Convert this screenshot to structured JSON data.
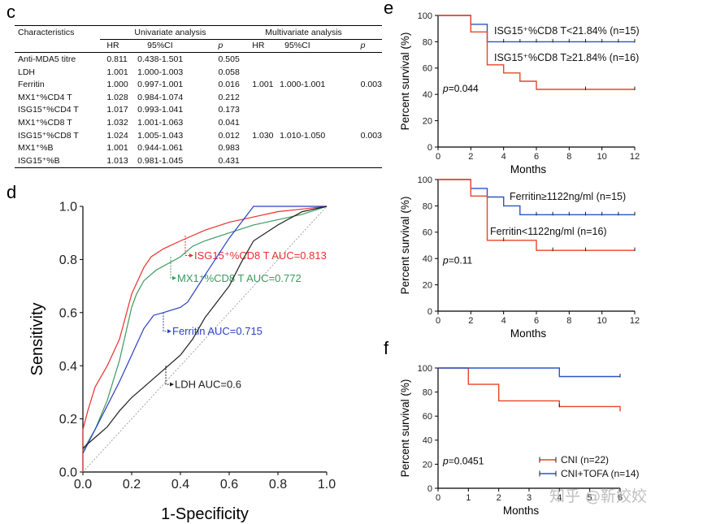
{
  "panels": {
    "c": "c",
    "d": "d",
    "e": "e",
    "f": "f"
  },
  "watermark": "知乎 @靳姣姣",
  "table": {
    "header_group": {
      "characteristics": "Characteristics",
      "univariate": "Univariate analysis",
      "multivariate": "Multivariate analysis"
    },
    "sub_headers": [
      "HR",
      "95%CI",
      "p",
      "HR",
      "95%CI",
      "p"
    ],
    "rows": [
      {
        "name": "Anti-MDA5 titre",
        "uhr": "0.811",
        "uci": "0.438-1.501",
        "up": "0.505",
        "mhr": "",
        "mci": "",
        "mp": ""
      },
      {
        "name": "LDH",
        "uhr": "1.001",
        "uci": "1.000-1.003",
        "up": "0.058",
        "mhr": "",
        "mci": "",
        "mp": ""
      },
      {
        "name": "Ferritin",
        "uhr": "1.000",
        "uci": "0.997-1.001",
        "up": "0.016",
        "mhr": "1.001",
        "mci": "1.000-1.001",
        "mp": "0.003"
      },
      {
        "name": "MX1⁺%CD4 T",
        "uhr": "1.028",
        "uci": "0.984-1.074",
        "up": "0.212",
        "mhr": "",
        "mci": "",
        "mp": ""
      },
      {
        "name": "ISG15⁺%CD4 T",
        "uhr": "1.017",
        "uci": "0.993-1.041",
        "up": "0.173",
        "mhr": "",
        "mci": "",
        "mp": ""
      },
      {
        "name": "MX1⁺%CD8 T",
        "uhr": "1.032",
        "uci": "1.001-1.063",
        "up": "0.041",
        "mhr": "",
        "mci": "",
        "mp": ""
      },
      {
        "name": "ISG15⁺%CD8 T",
        "uhr": "1.024",
        "uci": "1.005-1.043",
        "up": "0.012",
        "mhr": "1.030",
        "mci": "1.010-1.050",
        "mp": "0.003"
      },
      {
        "name": "MX1⁺%B",
        "uhr": "1.001",
        "uci": "0.944-1.061",
        "up": "0.983",
        "mhr": "",
        "mci": "",
        "mp": ""
      },
      {
        "name": "ISG15⁺%B",
        "uhr": "1.013",
        "uci": "0.981-1.045",
        "up": "0.431",
        "mhr": "",
        "mci": "",
        "mp": ""
      }
    ]
  },
  "chart_data": [
    {
      "panel": "d",
      "type": "line",
      "xlabel": "1-Specificity",
      "ylabel": "Sensitivity",
      "xlim": [
        0,
        1
      ],
      "ylim": [
        0,
        1
      ],
      "xticks": [
        "0.0",
        "0.2",
        "0.4",
        "0.6",
        "0.8",
        "1.0"
      ],
      "yticks": [
        "0.0",
        "0.2",
        "0.4",
        "0.6",
        "0.8",
        "1.0"
      ],
      "reference_line": true,
      "series": [
        {
          "name": "ISG15⁺%CD8 T AUC=0.813",
          "color": "#e8302e",
          "points": [
            [
              0,
              0
            ],
            [
              0,
              0.16
            ],
            [
              0.02,
              0.23
            ],
            [
              0.05,
              0.32
            ],
            [
              0.1,
              0.4
            ],
            [
              0.15,
              0.5
            ],
            [
              0.2,
              0.67
            ],
            [
              0.22,
              0.71
            ],
            [
              0.25,
              0.77
            ],
            [
              0.28,
              0.81
            ],
            [
              0.33,
              0.84
            ],
            [
              0.4,
              0.87
            ],
            [
              0.5,
              0.91
            ],
            [
              0.6,
              0.94
            ],
            [
              0.7,
              0.96
            ],
            [
              0.8,
              0.98
            ],
            [
              0.9,
              0.99
            ],
            [
              1,
              1
            ]
          ],
          "label_anchor": [
            0.42,
            0.89
          ],
          "label_pos": [
            0.45,
            0.815
          ]
        },
        {
          "name": "MX1⁺%CD8 T AUC=0.772",
          "color": "#3a9a5f",
          "points": [
            [
              0,
              0.08
            ],
            [
              0.05,
              0.16
            ],
            [
              0.1,
              0.27
            ],
            [
              0.15,
              0.42
            ],
            [
              0.2,
              0.62
            ],
            [
              0.22,
              0.67
            ],
            [
              0.25,
              0.72
            ],
            [
              0.3,
              0.76
            ],
            [
              0.4,
              0.81
            ],
            [
              0.45,
              0.85
            ],
            [
              0.5,
              0.87
            ],
            [
              0.6,
              0.9
            ],
            [
              0.7,
              0.93
            ],
            [
              0.8,
              0.95
            ],
            [
              0.9,
              0.97
            ],
            [
              1,
              1
            ]
          ],
          "label_anchor": [
            0.36,
            0.81
          ],
          "label_pos": [
            0.38,
            0.73
          ]
        },
        {
          "name": "Ferritin AUC=0.715",
          "color": "#2b3fc4",
          "points": [
            [
              0,
              0.07
            ],
            [
              0.05,
              0.16
            ],
            [
              0.1,
              0.25
            ],
            [
              0.15,
              0.34
            ],
            [
              0.2,
              0.44
            ],
            [
              0.25,
              0.54
            ],
            [
              0.29,
              0.59
            ],
            [
              0.33,
              0.6
            ],
            [
              0.4,
              0.62
            ],
            [
              0.43,
              0.64
            ],
            [
              0.5,
              0.74
            ],
            [
              0.55,
              0.81
            ],
            [
              0.6,
              0.88
            ],
            [
              0.65,
              0.94
            ],
            [
              0.7,
              1.0
            ],
            [
              1,
              1
            ]
          ],
          "label_anchor": [
            0.33,
            0.6
          ],
          "label_pos": [
            0.36,
            0.53
          ]
        },
        {
          "name": "LDH AUC=0.6",
          "color": "#1e1e1e",
          "points": [
            [
              0,
              0.09
            ],
            [
              0.05,
              0.13
            ],
            [
              0.1,
              0.17
            ],
            [
              0.15,
              0.23
            ],
            [
              0.2,
              0.28
            ],
            [
              0.25,
              0.32
            ],
            [
              0.3,
              0.36
            ],
            [
              0.35,
              0.4
            ],
            [
              0.4,
              0.44
            ],
            [
              0.45,
              0.5
            ],
            [
              0.5,
              0.58
            ],
            [
              0.55,
              0.64
            ],
            [
              0.6,
              0.7
            ],
            [
              0.65,
              0.79
            ],
            [
              0.7,
              0.87
            ],
            [
              0.8,
              0.93
            ],
            [
              0.9,
              0.98
            ],
            [
              1,
              1
            ]
          ],
          "label_anchor": [
            0.34,
            0.4
          ],
          "label_pos": [
            0.37,
            0.33
          ]
        }
      ]
    },
    {
      "panel": "e-top",
      "type": "line",
      "xlabel": "Months",
      "ylabel": "Percent survival (%)",
      "xlim": [
        0,
        12
      ],
      "ylim": [
        0,
        100
      ],
      "xticks": [
        0,
        2,
        4,
        6,
        8,
        10,
        12
      ],
      "yticks": [
        0,
        20,
        40,
        60,
        80,
        100
      ],
      "pvalue": "=0.044",
      "series": [
        {
          "name": "ISG15⁺%CD8 T<21.84% (n=15)",
          "color": "#2955c5",
          "steps": [
            [
              0,
              100
            ],
            [
              2,
              93.3
            ],
            [
              3,
              80
            ],
            [
              12,
              80
            ]
          ],
          "censors": [
            [
              4,
              80
            ],
            [
              5,
              80
            ],
            [
              6,
              80
            ],
            [
              7,
              80
            ],
            [
              8,
              80
            ],
            [
              9,
              80
            ],
            [
              10,
              80
            ],
            [
              11,
              80
            ],
            [
              12,
              80
            ]
          ]
        },
        {
          "name": "ISG15⁺%CD8 T≥21.84% (n=16)",
          "color": "#e8452a",
          "steps": [
            [
              0,
              100
            ],
            [
              2,
              87.5
            ],
            [
              3,
              62.5
            ],
            [
              4,
              56.3
            ],
            [
              5,
              50
            ],
            [
              6,
              43.8
            ],
            [
              12,
              43.8
            ]
          ],
          "censors": [
            [
              9,
              43.8
            ],
            [
              12,
              43.8
            ]
          ]
        }
      ]
    },
    {
      "panel": "e-bottom",
      "type": "line",
      "xlabel": "Months",
      "ylabel": "Percent survival (%)",
      "xlim": [
        0,
        12
      ],
      "ylim": [
        0,
        100
      ],
      "xticks": [
        0,
        2,
        4,
        6,
        8,
        10,
        12
      ],
      "yticks": [
        0,
        20,
        40,
        60,
        80,
        100
      ],
      "pvalue": "=0.11",
      "series": [
        {
          "name": "Ferritin≥1122ng/ml (n=15)",
          "color": "#2955c5",
          "steps": [
            [
              0,
              100
            ],
            [
              2,
              93.3
            ],
            [
              3,
              86.7
            ],
            [
              4,
              80
            ],
            [
              5,
              73.3
            ],
            [
              12,
              73.3
            ]
          ],
          "censors": [
            [
              6,
              73.3
            ],
            [
              7,
              73.3
            ],
            [
              8,
              73.3
            ],
            [
              9,
              73.3
            ],
            [
              10,
              73.3
            ],
            [
              11,
              73.3
            ],
            [
              12,
              73.3
            ]
          ]
        },
        {
          "name": "Ferritin<1122ng/ml (n=16)",
          "color": "#e8452a",
          "steps": [
            [
              0,
              100
            ],
            [
              2,
              87.5
            ],
            [
              3,
              53.8
            ],
            [
              6,
              46.2
            ],
            [
              12,
              46.2
            ]
          ],
          "censors": [
            [
              4,
              53.8
            ],
            [
              7,
              46.2
            ],
            [
              9,
              46.2
            ],
            [
              12,
              46.2
            ]
          ]
        }
      ]
    },
    {
      "panel": "f",
      "type": "line",
      "xlabel": "Months",
      "ylabel": "Percent survival (%)",
      "xlim": [
        0,
        6
      ],
      "ylim": [
        0,
        100
      ],
      "xticks": [
        0,
        1,
        2,
        3,
        4,
        5,
        6
      ],
      "yticks": [
        0,
        20,
        40,
        60,
        80,
        100
      ],
      "pvalue": "=0.0451",
      "legend": "bottom-right",
      "series": [
        {
          "name": "CNI (n=22)",
          "color": "#e8452a",
          "steps": [
            [
              0,
              100
            ],
            [
              1,
              86.4
            ],
            [
              2,
              72.7
            ],
            [
              4,
              68
            ],
            [
              6,
              68
            ],
            [
              6,
              64
            ]
          ],
          "censors": [
            [
              4,
              68
            ]
          ]
        },
        {
          "name": "CNI+TOFA (n=14)",
          "color": "#2955c5",
          "steps": [
            [
              0,
              100
            ],
            [
              4,
              92.9
            ],
            [
              6,
              92.9
            ]
          ],
          "censors": [
            [
              6,
              92.9
            ]
          ]
        }
      ]
    }
  ]
}
